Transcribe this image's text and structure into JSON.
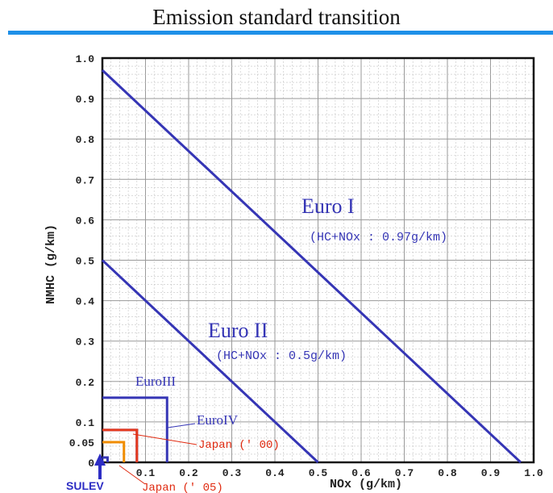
{
  "title": "Emission standard transition",
  "chart_data": {
    "type": "line",
    "xlabel": "NOx (g/km)",
    "ylabel": "NMHC (g/km)",
    "xlim": [
      0,
      1.0
    ],
    "ylim": [
      0,
      1.0
    ],
    "grid": true,
    "x_ticks": [
      "0",
      "0.1",
      "0.2",
      "0.3",
      "0.4",
      "0.5",
      "0.6",
      "0.7",
      "0.8",
      "0.9",
      "1.0"
    ],
    "y_ticks": [
      "0",
      "0.05",
      "0.1",
      "0.2",
      "0.3",
      "0.4",
      "0.5",
      "0.6",
      "0.7",
      "0.8",
      "0.9",
      "1.0"
    ],
    "limit_lines": [
      {
        "name": "Euro I",
        "note": "(HC+NOx : 0.97g/km)",
        "hc_plus_nox": 0.97,
        "color": "#3535b5"
      },
      {
        "name": "Euro II",
        "note": "(HC+NOx : 0.5g/km)",
        "hc_plus_nox": 0.5,
        "color": "#3535b5"
      }
    ],
    "limit_boxes": [
      {
        "name": "EuroIII",
        "nox": 0.15,
        "nmhc": 0.16,
        "color": "#3535b5"
      },
      {
        "name": "EuroIV",
        "nox": 0.08,
        "nmhc": 0.08,
        "color": "#3535b5"
      },
      {
        "name": "Japan (' 00)",
        "nox": 0.08,
        "nmhc": 0.08,
        "color": "#e53a1e"
      },
      {
        "name": "Japan (' 05)",
        "nox": 0.05,
        "nmhc": 0.05,
        "color": "#f08c00"
      },
      {
        "name": "SULEV",
        "nox": 0.012,
        "nmhc": 0.012,
        "color": "#3535b5"
      }
    ],
    "labels": {
      "euro1": "Euro I",
      "euro1_note": "(HC+NOx : 0.97g/km)",
      "euro2": "Euro II",
      "euro2_note": "(HC+NOx : 0.5g/km)",
      "euro3": "EuroIII",
      "euro4": "EuroIV",
      "japan00": "Japan (' 00)",
      "japan05": "Japan (' 05)",
      "sulev": "SULEV"
    }
  }
}
